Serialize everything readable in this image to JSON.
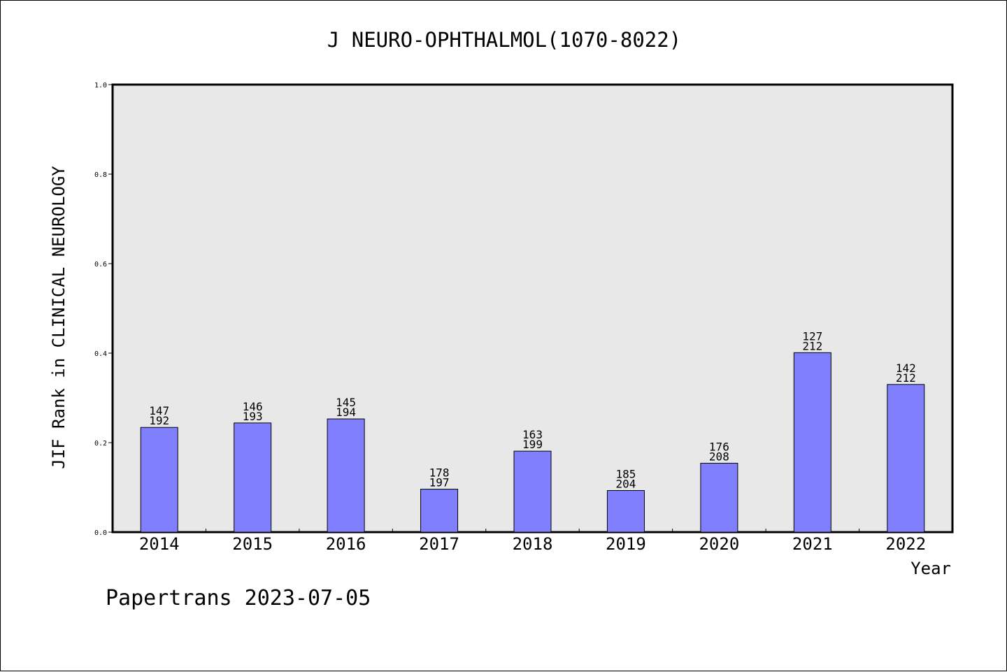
{
  "chart_data": {
    "type": "bar",
    "title": "J NEURO-OPHTHALMOL(1070-8022)",
    "xlabel": "Year",
    "ylabel": "JIF Rank in CLINICAL NEUROLOGY",
    "ylim": [
      0,
      1.0
    ],
    "yticks": [
      "0.0",
      "0.2",
      "0.4",
      "0.6",
      "0.8",
      "1.0"
    ],
    "categories": [
      "2014",
      "2015",
      "2016",
      "2017",
      "2018",
      "2019",
      "2020",
      "2021",
      "2022"
    ],
    "values": [
      0.234,
      0.244,
      0.253,
      0.096,
      0.181,
      0.093,
      0.154,
      0.401,
      0.33
    ],
    "rank": [
      "147",
      "146",
      "145",
      "178",
      "163",
      "185",
      "176",
      "127",
      "142"
    ],
    "total": [
      "192",
      "193",
      "194",
      "197",
      "199",
      "204",
      "208",
      "212",
      "212"
    ],
    "grid": false,
    "bar_color": "#8080ff",
    "plot_background": "#e8e8e8"
  },
  "footer": "Papertrans 2023-07-05"
}
